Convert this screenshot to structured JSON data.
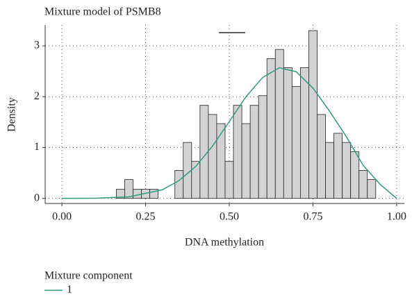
{
  "chart_data": {
    "type": "histogram",
    "title": "Mixture model of PSMB8",
    "xlabel": "DNA methylation",
    "ylabel": "Density",
    "bins": [
      0.1625,
      0.1875,
      0.2125,
      0.2375,
      0.2625,
      0.2875,
      0.3125,
      0.3375,
      0.3625,
      0.3875,
      0.4125,
      0.4375,
      0.4625,
      0.4875,
      0.5125,
      0.5375,
      0.5625,
      0.5875,
      0.6125,
      0.6375,
      0.6625,
      0.6875,
      0.7125,
      0.7375,
      0.7625,
      0.7875,
      0.8125,
      0.8375,
      0.8625,
      0.8875,
      0.9125,
      0.9375
    ],
    "values": [
      0.18,
      0.37,
      0.18,
      0.18,
      0.18,
      0,
      0,
      0.55,
      1.1,
      0.73,
      1.83,
      1.65,
      1.47,
      0.73,
      1.83,
      1.47,
      1.83,
      2.02,
      2.75,
      2.93,
      2.57,
      2.2,
      2.57,
      3.3,
      1.65,
      1.1,
      1.28,
      1.1,
      0.92,
      0.55,
      0.37
    ],
    "bar_color": "#d3d3d3",
    "legend_title": "Mixture component",
    "series": [
      {
        "name": "1",
        "color": "#2a9d7c",
        "x": [
          0,
          0.1,
          0.2,
          0.3,
          0.35,
          0.4,
          0.45,
          0.5,
          0.55,
          0.6,
          0.65,
          0.7,
          0.75,
          0.8,
          0.85,
          0.9,
          0.95,
          1.0
        ],
        "values": [
          0,
          0.004,
          0.03,
          0.17,
          0.35,
          0.63,
          1.03,
          1.51,
          2.0,
          2.38,
          2.57,
          2.49,
          2.17,
          1.71,
          1.21,
          0.65,
          0.28,
          0
        ]
      }
    ],
    "xlim": [
      -0.05,
      1.023
    ],
    "ylim": [
      -0.1,
      3.41
    ],
    "xticks": [
      {
        "value": 0,
        "label": "0.00"
      },
      {
        "value": 0.25,
        "label": "0.25"
      },
      {
        "value": 0.5,
        "label": "0.50"
      },
      {
        "value": 0.75,
        "label": "0.75"
      },
      {
        "value": 1,
        "label": "1.00"
      }
    ],
    "yticks": [
      0,
      1,
      2,
      3
    ],
    "grid": true
  }
}
